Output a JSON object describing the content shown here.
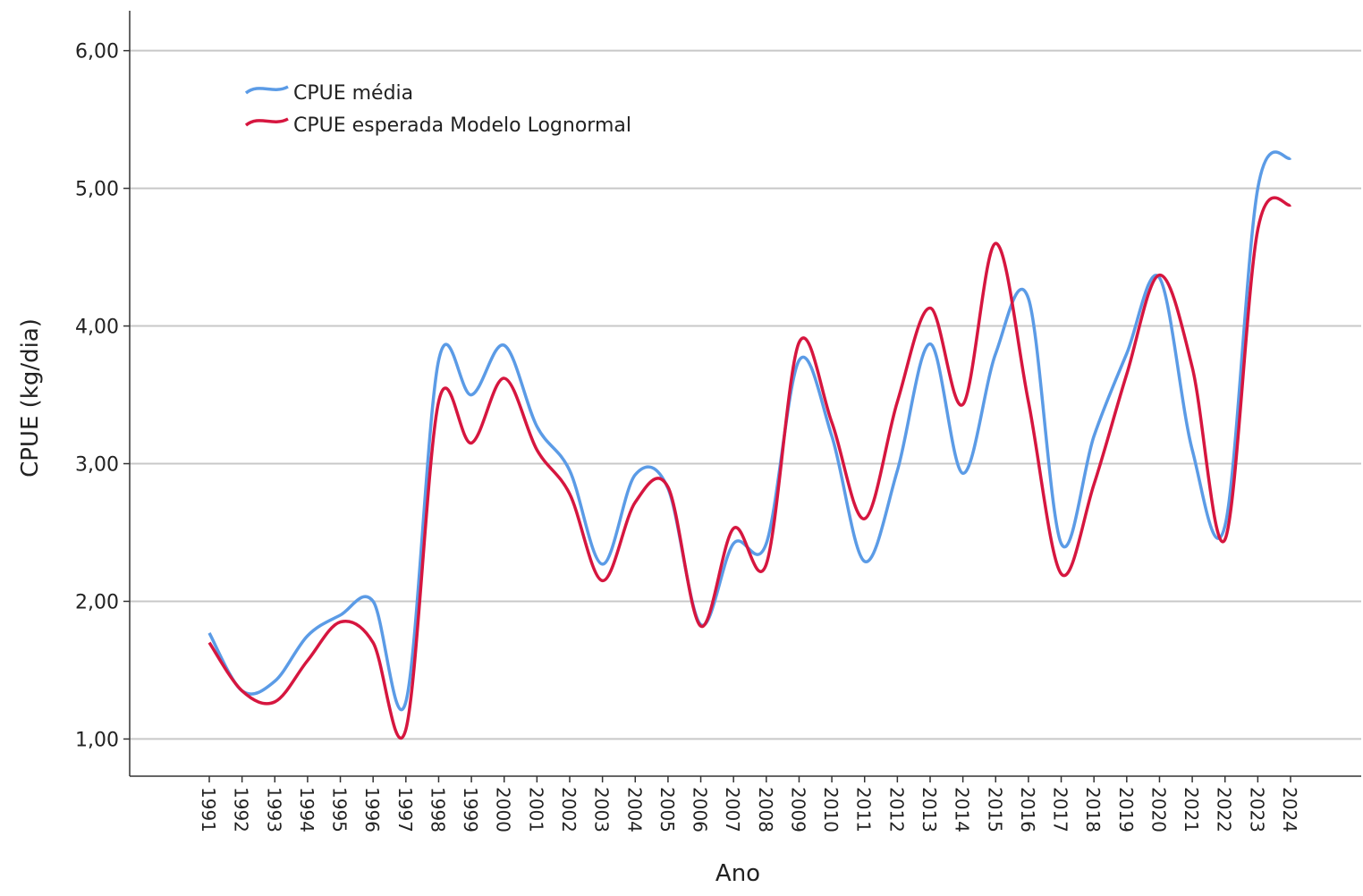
{
  "chart_data": {
    "type": "line",
    "x_label": "Ano",
    "y_label": "CPUE (kg/dia)",
    "categories": [
      "1991",
      "1992",
      "1993",
      "1994",
      "1995",
      "1996",
      "1997",
      "1998",
      "1999",
      "2000",
      "2001",
      "2002",
      "2003",
      "2004",
      "2005",
      "2006",
      "2007",
      "2008",
      "2009",
      "2010",
      "2011",
      "2012",
      "2013",
      "2014",
      "2015",
      "2016",
      "2017",
      "2018",
      "2019",
      "2020",
      "2021",
      "2022",
      "2023",
      "2024"
    ],
    "series": [
      {
        "name": "CPUE média",
        "color": "#5b9be6",
        "values": [
          1.77,
          1.35,
          1.42,
          1.75,
          1.9,
          2.0,
          1.27,
          3.75,
          3.5,
          3.86,
          3.27,
          2.95,
          2.27,
          2.92,
          2.82,
          1.83,
          2.42,
          2.42,
          3.75,
          3.2,
          2.29,
          2.95,
          3.87,
          2.93,
          3.8,
          4.2,
          2.42,
          3.2,
          3.8,
          4.35,
          3.1,
          2.55,
          5.0,
          5.22
        ]
      },
      {
        "name": "CPUE esperada Modelo Lognormal",
        "color": "#d6163f",
        "values": [
          1.7,
          1.35,
          1.27,
          1.57,
          1.85,
          1.7,
          1.07,
          3.45,
          3.15,
          3.62,
          3.1,
          2.78,
          2.15,
          2.72,
          2.83,
          1.82,
          2.53,
          2.27,
          3.88,
          3.3,
          2.6,
          3.45,
          4.13,
          3.43,
          4.6,
          3.45,
          2.2,
          2.85,
          3.65,
          4.37,
          3.7,
          2.45,
          4.7,
          4.88
        ]
      }
    ],
    "ylim": [
      0.73,
      6.29
    ],
    "yticks": [
      {
        "value": 1,
        "label": "1,00"
      },
      {
        "value": 2,
        "label": "2,00"
      },
      {
        "value": 3,
        "label": "3,00"
      },
      {
        "value": 4,
        "label": "4,00"
      },
      {
        "value": 5,
        "label": "5,00"
      },
      {
        "value": 6,
        "label": "6,00"
      }
    ],
    "grid": true,
    "legend": "top-left"
  }
}
